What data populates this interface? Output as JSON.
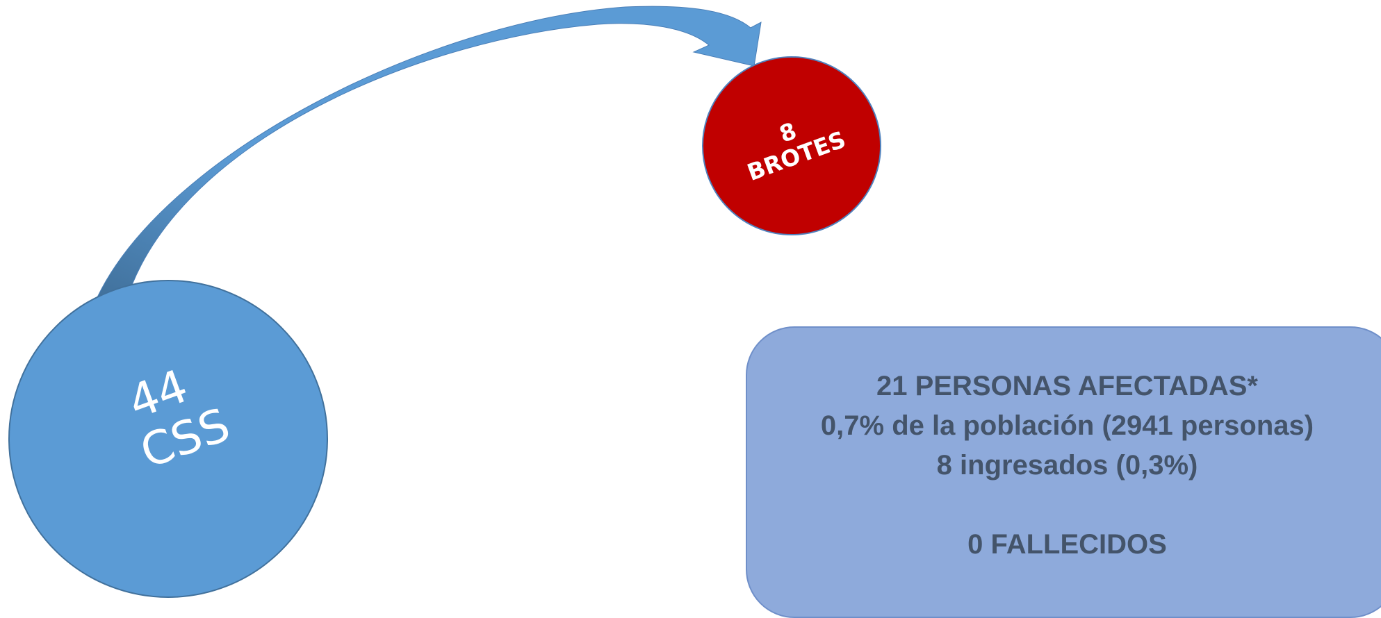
{
  "colors": {
    "css_circle": "#5b9bd5",
    "css_circle_border": "#41719c",
    "arrow": "#5b9bd5",
    "arrow_shadow": "#41719c",
    "brotes_circle": "#c00000",
    "brotes_circle_border": "#4f81bd",
    "info_box": "#8eaadb",
    "info_text": "#44546a",
    "label_text": "#ffffff"
  },
  "css_node": {
    "number": "44",
    "label": "CSS"
  },
  "brotes_node": {
    "number": "8",
    "label": "BROTES"
  },
  "info_box": {
    "line1": "21 PERSONAS AFECTADAS*",
    "line2": "0,7% de la población (2941 personas)",
    "line3": "8 ingresados (0,3%)",
    "line4": "0 FALLECIDOS"
  }
}
